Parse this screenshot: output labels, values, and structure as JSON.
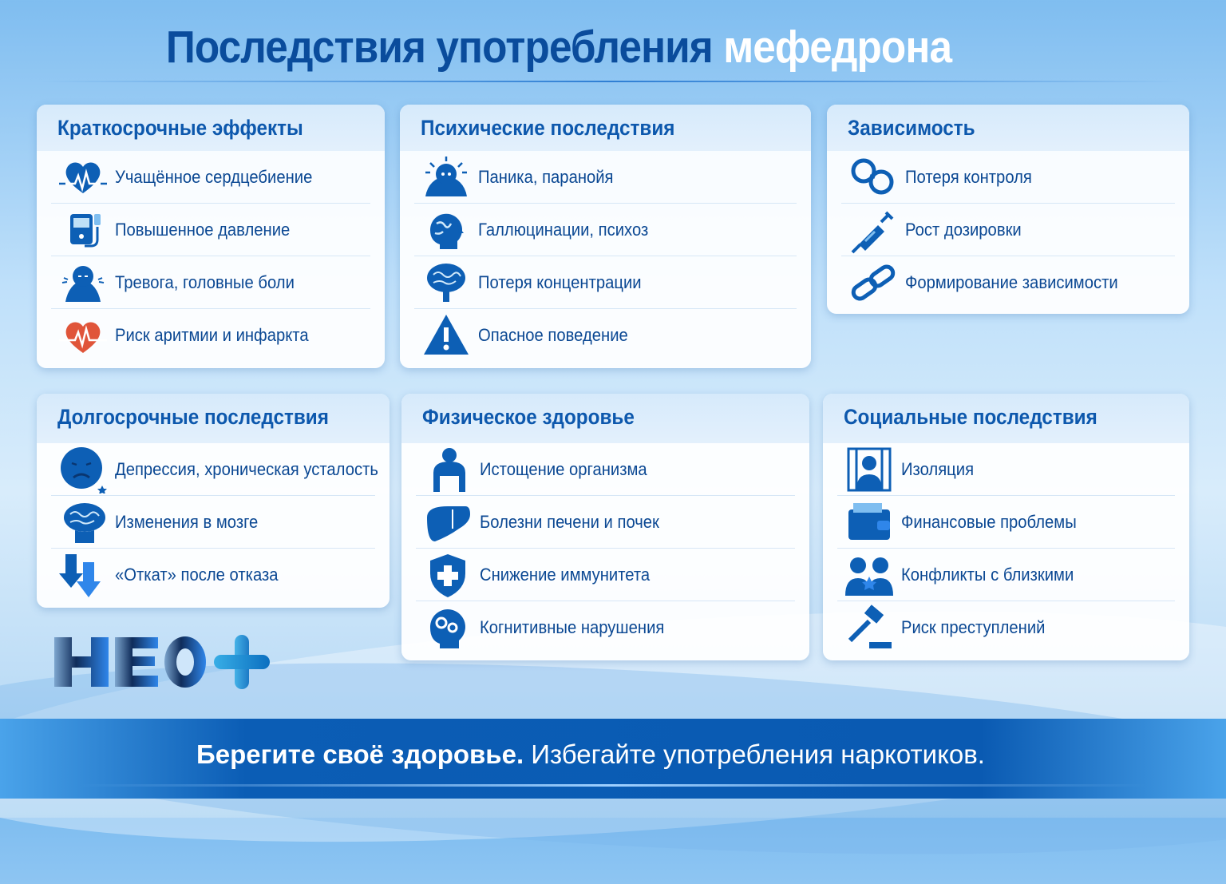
{
  "title": {
    "main": "Последствия употребления",
    "highlight": "мефедрона"
  },
  "colors": {
    "primary": "#0d58ad",
    "text": "#0b4893",
    "alert": "#e0553a",
    "band": "#0a5ab2"
  },
  "cards": [
    {
      "id": "short-term",
      "title": "Краткосрочные эффекты",
      "items": [
        {
          "label": "Учащённое сердцебиение",
          "icon": "heart-pulse-icon"
        },
        {
          "label": "Повышенное давление",
          "icon": "blood-pressure-monitor-icon"
        },
        {
          "label": "Тревога, головные боли",
          "icon": "headache-person-icon"
        },
        {
          "label": "Риск аритмии и инфаркта",
          "icon": "heart-pulse-red-icon"
        }
      ]
    },
    {
      "id": "mental",
      "title": "Психические последствия",
      "items": [
        {
          "label": "Паника, паранойя",
          "icon": "panic-person-icon"
        },
        {
          "label": "Галлюцинации, психоз",
          "icon": "head-globe-icon"
        },
        {
          "label": "Потеря концентрации",
          "icon": "brain-icon"
        },
        {
          "label": "Опасное поведение",
          "icon": "warning-icon"
        }
      ]
    },
    {
      "id": "addiction",
      "title": "Зависимость",
      "items": [
        {
          "label": "Потеря контроля",
          "icon": "handcuffs-icon"
        },
        {
          "label": "Рост дозировки",
          "icon": "syringe-icon"
        },
        {
          "label": "Формирование зависимости",
          "icon": "chain-icon"
        }
      ]
    },
    {
      "id": "long-term",
      "title": "Долгосрочные последствия",
      "items": [
        {
          "label": "Депрессия, хроническая усталость",
          "icon": "sad-face-icon"
        },
        {
          "label": "Изменения в мозге",
          "icon": "brain-head-icon"
        },
        {
          "label": "«Откат» после отказа",
          "icon": "arrows-down-icon"
        }
      ]
    },
    {
      "id": "physical",
      "title": "Физическое здоровье",
      "items": [
        {
          "label": "Истощение организма",
          "icon": "exhausted-person-icon"
        },
        {
          "label": "Болезни печени и почек",
          "icon": "liver-icon"
        },
        {
          "label": "Снижение иммунитета",
          "icon": "shield-cross-icon"
        },
        {
          "label": "Когнитивные нарушения",
          "icon": "head-gears-icon"
        }
      ]
    },
    {
      "id": "social",
      "title": "Социальные последствия",
      "items": [
        {
          "label": "Изоляция",
          "icon": "person-behind-bars-icon"
        },
        {
          "label": "Финансовые проблемы",
          "icon": "wallet-icon"
        },
        {
          "label": "Конфликты с близкими",
          "icon": "conflict-people-icon"
        },
        {
          "label": "Риск преступлений",
          "icon": "gavel-icon"
        }
      ]
    }
  ],
  "logo": {
    "text": "НЕО+"
  },
  "footer": {
    "bold": "Берегите своё здоровье.",
    "rest": " Избегайте употребления наркотиков."
  }
}
